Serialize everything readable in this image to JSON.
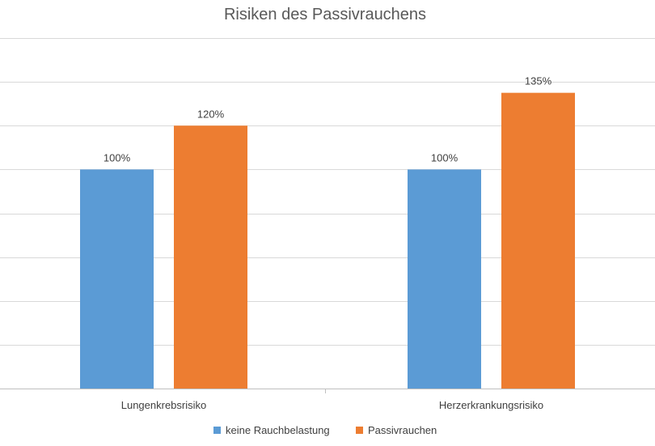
{
  "chart_data": {
    "type": "bar",
    "title": "Risiken des Passivrauchens",
    "categories": [
      "Lungenkrebsrisiko",
      "Herzerkrankungsrisiko"
    ],
    "series": [
      {
        "name": "keine Rauchbelastung",
        "values": [
          100,
          100
        ],
        "labels": [
          "100%",
          "100%"
        ],
        "color": "#5b9bd5"
      },
      {
        "name": "Passivrauchen",
        "values": [
          120,
          135
        ],
        "labels": [
          "120%",
          "135%"
        ],
        "color": "#ed7d31"
      }
    ],
    "ylim": [
      0,
      160
    ],
    "grid": true,
    "legend": "bottom"
  }
}
